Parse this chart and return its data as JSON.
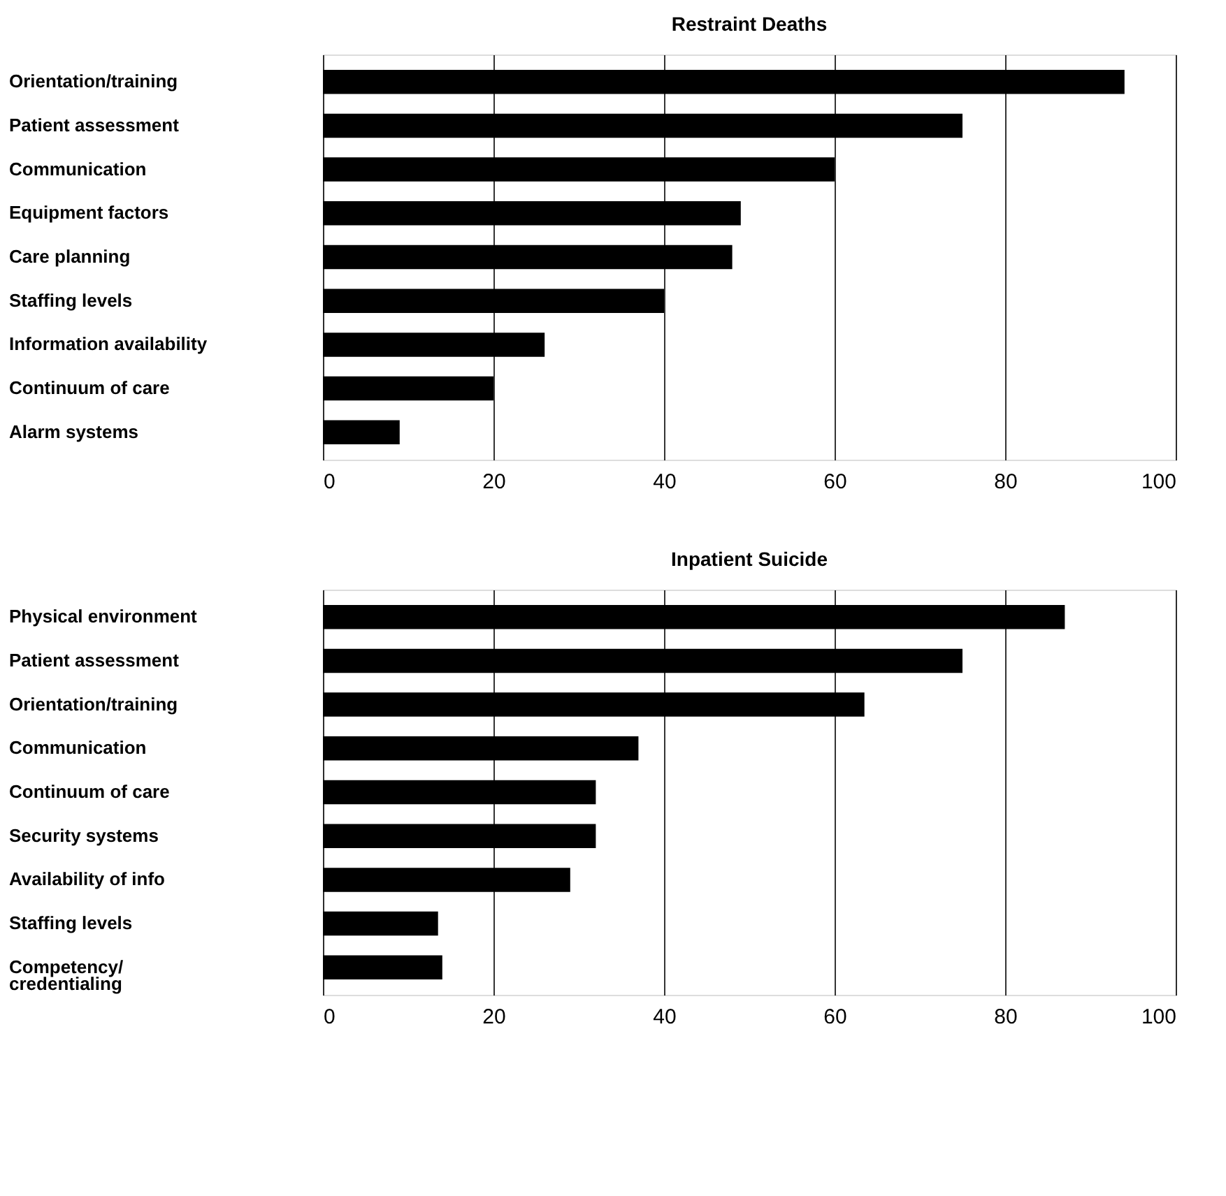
{
  "chart_data": [
    {
      "type": "bar",
      "orientation": "horizontal",
      "title": "Restraint Deaths",
      "categories": [
        "Orientation/training",
        "Patient assessment",
        "Communication",
        "Equipment factors",
        "Care planning",
        "Staffing levels",
        "Information availability",
        "Continuum of care",
        "Alarm systems"
      ],
      "values": [
        94,
        75,
        60,
        49,
        48,
        40,
        26,
        20,
        9
      ],
      "color": "#000000",
      "xlim": [
        0,
        100
      ],
      "xticks": [
        0,
        20,
        40,
        60,
        80,
        100
      ],
      "grid": "x"
    },
    {
      "type": "bar",
      "orientation": "horizontal",
      "title": "Inpatient Suicide",
      "categories": [
        "Physical environment",
        "Patient assessment",
        "Orientation/training",
        "Communication",
        "Continuum of care",
        "Security systems",
        "Availability of info",
        "Staffing levels",
        "Competency/\ncredentialing"
      ],
      "values": [
        87,
        75,
        63.5,
        37,
        32,
        32,
        29,
        13.5,
        14
      ],
      "color": "#000000",
      "xlim": [
        0,
        100
      ],
      "xticks": [
        0,
        20,
        40,
        60,
        80,
        100
      ],
      "grid": "x"
    }
  ]
}
